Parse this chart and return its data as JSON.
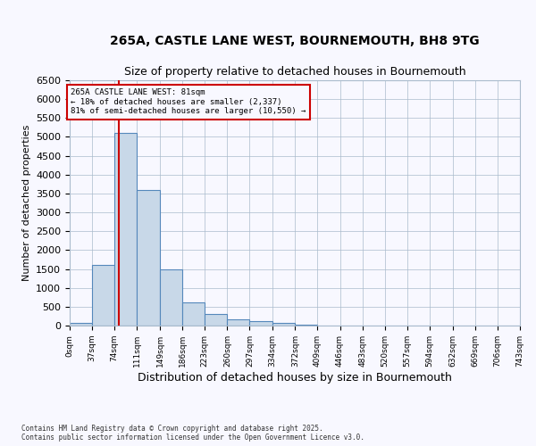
{
  "title_line1": "265A, CASTLE LANE WEST, BOURNEMOUTH, BH8 9TG",
  "title_line2": "Size of property relative to detached houses in Bournemouth",
  "xlabel": "Distribution of detached houses by size in Bournemouth",
  "ylabel": "Number of detached properties",
  "bar_edges": [
    0,
    37,
    74,
    111,
    149,
    186,
    223,
    260,
    297,
    334,
    372,
    409,
    446,
    483,
    520,
    557,
    594,
    632,
    669,
    706,
    743
  ],
  "bar_heights": [
    70,
    1600,
    5100,
    3600,
    1500,
    620,
    310,
    175,
    130,
    80,
    25,
    10,
    5,
    5,
    2,
    2,
    2,
    1,
    1,
    1
  ],
  "bar_color": "#c8d8e8",
  "bar_edge_color": "#5588bb",
  "property_size": 81,
  "property_line_color": "#cc0000",
  "ylim": [
    0,
    6500
  ],
  "yticks": [
    0,
    500,
    1000,
    1500,
    2000,
    2500,
    3000,
    3500,
    4000,
    4500,
    5000,
    5500,
    6000,
    6500
  ],
  "annotation_title": "265A CASTLE LANE WEST: 81sqm",
  "annotation_line2": "← 18% of detached houses are smaller (2,337)",
  "annotation_line3": "81% of semi-detached houses are larger (10,550) →",
  "annotation_box_color": "#cc0000",
  "footnote_line1": "Contains HM Land Registry data © Crown copyright and database right 2025.",
  "footnote_line2": "Contains public sector information licensed under the Open Government Licence v3.0.",
  "bg_color": "#f8f8ff",
  "grid_color": "#aabbcc",
  "title_fontsize": 10,
  "subtitle_fontsize": 9,
  "tick_labels": [
    "0sqm",
    "37sqm",
    "74sqm",
    "111sqm",
    "149sqm",
    "186sqm",
    "223sqm",
    "260sqm",
    "297sqm",
    "334sqm",
    "372sqm",
    "409sqm",
    "446sqm",
    "483sqm",
    "520sqm",
    "557sqm",
    "594sqm",
    "632sqm",
    "669sqm",
    "706sqm",
    "743sqm"
  ]
}
